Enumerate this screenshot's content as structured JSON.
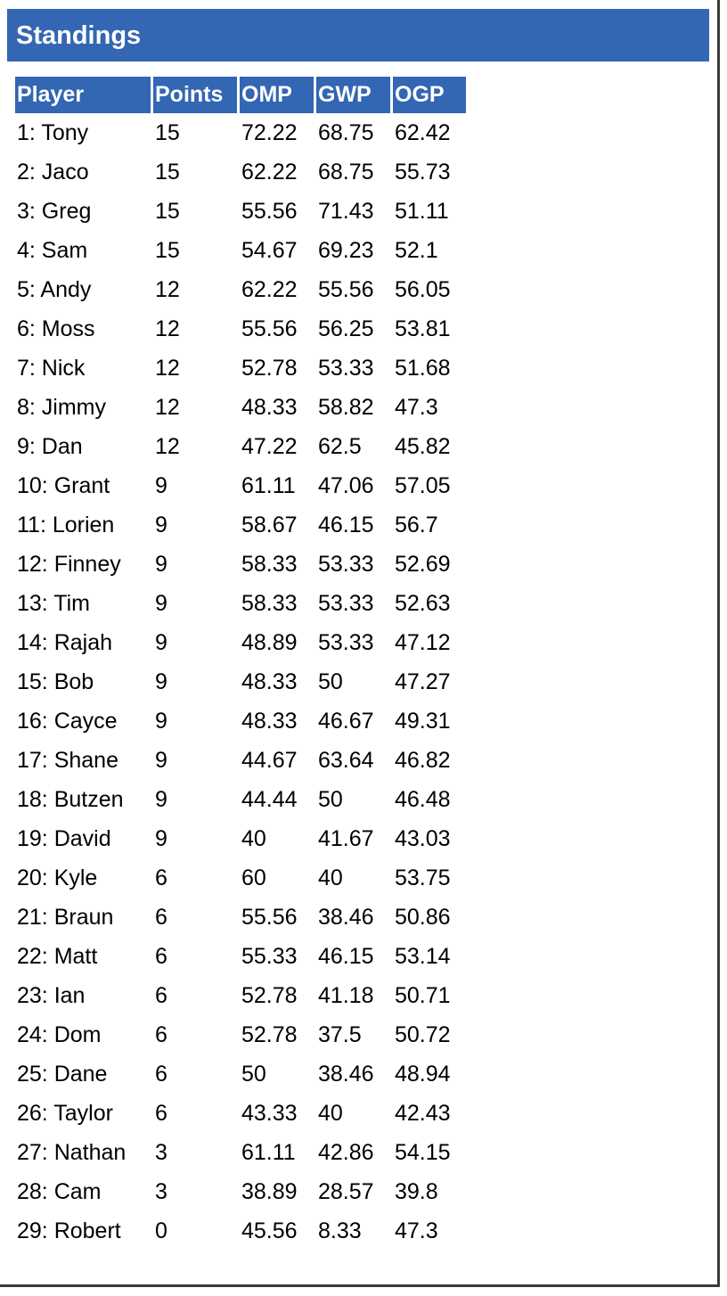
{
  "title": "Standings",
  "columns": {
    "player": "Player",
    "points": "Points",
    "omp": "OMP",
    "gwp": "GWP",
    "ogp": "OGP"
  },
  "rows": [
    {
      "player": "1: Tony",
      "points": "15",
      "omp": "72.22",
      "gwp": "68.75",
      "ogp": "62.42"
    },
    {
      "player": "2: Jaco",
      "points": "15",
      "omp": "62.22",
      "gwp": "68.75",
      "ogp": "55.73"
    },
    {
      "player": "3: Greg",
      "points": "15",
      "omp": "55.56",
      "gwp": "71.43",
      "ogp": "51.11"
    },
    {
      "player": "4: Sam",
      "points": "15",
      "omp": "54.67",
      "gwp": "69.23",
      "ogp": "52.1"
    },
    {
      "player": "5: Andy",
      "points": "12",
      "omp": "62.22",
      "gwp": "55.56",
      "ogp": "56.05"
    },
    {
      "player": "6: Moss",
      "points": "12",
      "omp": "55.56",
      "gwp": "56.25",
      "ogp": "53.81"
    },
    {
      "player": "7: Nick",
      "points": "12",
      "omp": "52.78",
      "gwp": "53.33",
      "ogp": "51.68"
    },
    {
      "player": "8: Jimmy",
      "points": "12",
      "omp": "48.33",
      "gwp": "58.82",
      "ogp": "47.3"
    },
    {
      "player": "9: Dan",
      "points": "12",
      "omp": "47.22",
      "gwp": "62.5",
      "ogp": "45.82"
    },
    {
      "player": "10: Grant",
      "points": "9",
      "omp": "61.11",
      "gwp": "47.06",
      "ogp": "57.05"
    },
    {
      "player": "11: Lorien",
      "points": "9",
      "omp": "58.67",
      "gwp": "46.15",
      "ogp": "56.7"
    },
    {
      "player": "12: Finney",
      "points": "9",
      "omp": "58.33",
      "gwp": "53.33",
      "ogp": "52.69"
    },
    {
      "player": "13: Tim",
      "points": "9",
      "omp": "58.33",
      "gwp": "53.33",
      "ogp": "52.63"
    },
    {
      "player": "14: Rajah",
      "points": "9",
      "omp": "48.89",
      "gwp": "53.33",
      "ogp": "47.12"
    },
    {
      "player": "15: Bob",
      "points": "9",
      "omp": "48.33",
      "gwp": "50",
      "ogp": "47.27"
    },
    {
      "player": "16: Cayce",
      "points": "9",
      "omp": "48.33",
      "gwp": "46.67",
      "ogp": "49.31"
    },
    {
      "player": "17: Shane",
      "points": "9",
      "omp": "44.67",
      "gwp": "63.64",
      "ogp": "46.82"
    },
    {
      "player": "18: Butzen",
      "points": "9",
      "omp": "44.44",
      "gwp": "50",
      "ogp": "46.48"
    },
    {
      "player": "19: David",
      "points": "9",
      "omp": "40",
      "gwp": "41.67",
      "ogp": "43.03"
    },
    {
      "player": "20: Kyle",
      "points": "6",
      "omp": "60",
      "gwp": "40",
      "ogp": "53.75"
    },
    {
      "player": "21: Braun",
      "points": "6",
      "omp": "55.56",
      "gwp": "38.46",
      "ogp": "50.86"
    },
    {
      "player": "22: Matt",
      "points": "6",
      "omp": "55.33",
      "gwp": "46.15",
      "ogp": "53.14"
    },
    {
      "player": "23: Ian",
      "points": "6",
      "omp": "52.78",
      "gwp": "41.18",
      "ogp": "50.71"
    },
    {
      "player": "24: Dom",
      "points": "6",
      "omp": "52.78",
      "gwp": "37.5",
      "ogp": "50.72"
    },
    {
      "player": "25: Dane",
      "points": "6",
      "omp": "50",
      "gwp": "38.46",
      "ogp": "48.94"
    },
    {
      "player": "26: Taylor",
      "points": "6",
      "omp": "43.33",
      "gwp": "40",
      "ogp": "42.43"
    },
    {
      "player": "27: Nathan",
      "points": "3",
      "omp": "61.11",
      "gwp": "42.86",
      "ogp": "54.15"
    },
    {
      "player": "28: Cam",
      "points": "3",
      "omp": "38.89",
      "gwp": "28.57",
      "ogp": "39.8"
    },
    {
      "player": "29: Robert",
      "points": "0",
      "omp": "45.56",
      "gwp": "8.33",
      "ogp": "47.3"
    }
  ]
}
